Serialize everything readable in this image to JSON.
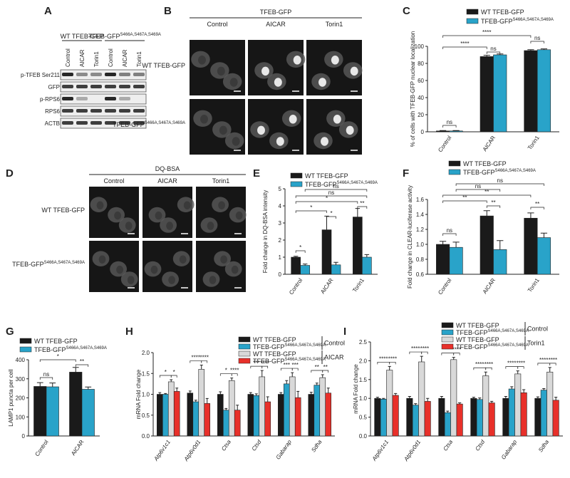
{
  "blot": {
    "panel": "A",
    "groups": [
      {
        "name": "WT TFEB-GFP"
      },
      {
        "name": "TFEB-GFP",
        "name_superscript": "S466A,S467A,S469A"
      }
    ],
    "lanes": [
      "Control",
      "AICAR",
      "Torin1",
      "Control",
      "AICAR",
      "Torin1"
    ],
    "rows": [
      "p-TFEB Ser211",
      "GFP",
      "p-RPS6",
      "RPS6",
      "ACTB"
    ]
  },
  "microscopy": [
    {
      "panel": "B",
      "title": "TFEB-GFP",
      "columns": [
        "Control",
        "AICAR",
        "Torin1"
      ],
      "rows": [
        {
          "name": "WT TFEB-GFP"
        },
        {
          "name": "TFEB-GFP",
          "name_superscript": "S466A,S467A,S469A"
        }
      ]
    },
    {
      "panel": "D",
      "title": "DQ-BSA",
      "columns": [
        "Control",
        "AICAR",
        "Torin1"
      ],
      "rows": [
        {
          "name": "WT TFEB-GFP"
        },
        {
          "name": "TFEB-GFP",
          "name_superscript": "S466A,S467A,S469A"
        }
      ]
    }
  ],
  "chart_data": [
    {
      "panel": "C",
      "type": "bar",
      "y_label": "% of cells with TFEB-GFP nuclear localization",
      "categories": [
        "Control",
        "AICAR",
        "Torin1"
      ],
      "series": [
        {
          "name": "WT TFEB-GFP",
          "color": "#1a1a1a",
          "values": [
            1,
            88,
            95
          ],
          "errors": [
            0.5,
            1.5,
            1
          ]
        },
        {
          "name": "TFEB-GFP",
          "name_superscript": "S466A,S467A,S469A",
          "color": "#29a3c9",
          "values": [
            1,
            90,
            96
          ],
          "errors": [
            0.5,
            1,
            1
          ]
        }
      ],
      "ylim": [
        0,
        100
      ],
      "yticks": [
        0,
        20,
        40,
        60,
        80,
        100
      ],
      "significance": [
        "ns",
        "****",
        "****",
        "ns",
        "ns"
      ]
    },
    {
      "panel": "E",
      "type": "bar",
      "y_label": "Fold change in DQ-BSA intensity",
      "categories": [
        "Control",
        "AICAR",
        "Torin1"
      ],
      "series": [
        {
          "name": "WT TFEB-GFP",
          "color": "#1a1a1a",
          "values": [
            1.0,
            2.6,
            3.35
          ],
          "errors": [
            0.05,
            0.8,
            0.5
          ]
        },
        {
          "name": "TFEB-GFP",
          "name_superscript": "S466A,S467A,S469A",
          "color": "#29a3c9",
          "values": [
            0.52,
            0.55,
            1.0
          ],
          "errors": [
            0.08,
            0.15,
            0.15
          ]
        }
      ],
      "ylim": [
        0,
        5
      ],
      "yticks": [
        0,
        1,
        2,
        3,
        4,
        5
      ],
      "significance": [
        "*",
        "*",
        "*",
        "*",
        "ns",
        "ns",
        "**"
      ]
    },
    {
      "panel": "F",
      "type": "bar",
      "y_label": "Fold change in CLEAR-luciferase activity",
      "categories": [
        "Control",
        "AICAR",
        "Torin1"
      ],
      "series": [
        {
          "name": "WT TFEB-GFP",
          "color": "#1a1a1a",
          "values": [
            1.0,
            1.38,
            1.35
          ],
          "errors": [
            0.04,
            0.07,
            0.07
          ]
        },
        {
          "name": "TFEB-GFP",
          "name_superscript": "S466A,S467A,S469A",
          "color": "#29a3c9",
          "values": [
            0.96,
            0.93,
            1.09
          ],
          "errors": [
            0.07,
            0.12,
            0.06
          ]
        }
      ],
      "ylim": [
        0.6,
        1.6
      ],
      "yticks": [
        0.6,
        0.8,
        {
          "value": 1,
          "label": "1.0"
        },
        1.2,
        1.4,
        1.6
      ],
      "significance": [
        "ns",
        "**",
        "**",
        "**",
        "**",
        "ns",
        "ns"
      ]
    },
    {
      "panel": "G",
      "type": "bar",
      "y_label": "LAMP1 puncta per cell",
      "categories": [
        "Control",
        "AICAR"
      ],
      "series": [
        {
          "name": "WT TFEB-GFP",
          "color": "#1a1a1a",
          "values": [
            260,
            335
          ],
          "errors": [
            20,
            25
          ]
        },
        {
          "name": "TFEB-GFP",
          "name_superscript": "S466A,S467A,S469A",
          "color": "#29a3c9",
          "values": [
            258,
            245
          ],
          "errors": [
            20,
            12
          ]
        }
      ],
      "ylim": [
        0,
        400
      ],
      "yticks": [
        0,
        100,
        200,
        300,
        400
      ],
      "significance": [
        "ns",
        "*",
        "**"
      ]
    },
    {
      "panel": "H",
      "type": "bar",
      "y_label": "mRNA Fold change",
      "italic_categories": true,
      "categories": [
        "Atp6v1c1",
        "Atp6v0d1",
        "Ctsa",
        "Ctsd",
        "Gabarap",
        "Sdha"
      ],
      "legend_groups": [
        "Control",
        "AICAR"
      ],
      "series": [
        {
          "name": "WT TFEB-GFP",
          "color": "#1a1a1a",
          "values": [
            1.0,
            1.03,
            1.0,
            1.0,
            1.0,
            1.0
          ],
          "errors": [
            0.04,
            0.05,
            0.06,
            0.04,
            0.04,
            0.05
          ]
        },
        {
          "name": "TFEB-GFP",
          "name_superscript": "S466A,S467A,S469A",
          "color": "#29a3c9",
          "values": [
            1.0,
            0.82,
            0.62,
            0.97,
            1.25,
            1.22
          ],
          "errors": [
            0.02,
            0.04,
            0.04,
            0.04,
            0.08,
            0.05
          ]
        },
        {
          "name": "WT TFEB-GFP",
          "color": "#d9d9d9",
          "values": [
            1.3,
            1.6,
            1.33,
            1.42,
            1.42,
            1.4
          ],
          "errors": [
            0.05,
            0.1,
            0.06,
            0.15,
            0.1,
            0.07
          ]
        },
        {
          "name": "TFEB-GFP",
          "name_superscript": "S466A,S467A,S469A",
          "color": "#e8302a",
          "values": [
            1.07,
            0.78,
            0.62,
            0.82,
            0.92,
            1.03
          ],
          "errors": [
            0.08,
            0.12,
            0.12,
            0.12,
            0.15,
            0.12
          ]
        }
      ],
      "ylim": [
        0,
        2.0
      ],
      "yticks": [
        {
          "value": 0,
          "label": "0.0"
        },
        0.5,
        {
          "value": 1,
          "label": "1.0"
        },
        1.5,
        {
          "value": 2,
          "label": "2.0"
        }
      ],
      "significance": [
        "*",
        "*",
        "****",
        "****",
        "*",
        "****",
        "***",
        "****",
        "***",
        "***",
        "**",
        "**"
      ]
    },
    {
      "panel": "I",
      "type": "bar",
      "y_label": "mRNA Fold change",
      "italic_categories": true,
      "categories": [
        "Atp6v1c1",
        "Atp6v0d1",
        "Ctsa",
        "Ctsd",
        "Gabarap",
        "Sdha"
      ],
      "legend_groups": [
        "Control",
        "Torin1"
      ],
      "series": [
        {
          "name": "WT TFEB-GFP",
          "color": "#1a1a1a",
          "values": [
            1.0,
            1.0,
            1.0,
            1.0,
            1.0,
            1.0
          ],
          "errors": [
            0.03,
            0.05,
            0.05,
            0.03,
            0.05,
            0.04
          ]
        },
        {
          "name": "TFEB-GFP",
          "name_superscript": "S466A,S467A,S469A",
          "color": "#29a3c9",
          "values": [
            0.98,
            0.82,
            0.62,
            0.97,
            1.25,
            1.22
          ],
          "errors": [
            0.02,
            0.04,
            0.04,
            0.04,
            0.06,
            0.04
          ]
        },
        {
          "name": "WT TFEB-GFP",
          "color": "#d9d9d9",
          "values": [
            1.75,
            1.97,
            2.03,
            1.6,
            1.65,
            1.7
          ],
          "errors": [
            0.1,
            0.15,
            0.06,
            0.1,
            0.08,
            0.12
          ]
        },
        {
          "name": "TFEB-GFP",
          "name_superscript": "S466A,S467A,S469A",
          "color": "#e8302a",
          "values": [
            1.08,
            0.92,
            0.85,
            0.88,
            1.15,
            0.95
          ],
          "errors": [
            0.05,
            0.08,
            0.03,
            0.04,
            0.08,
            0.08
          ]
        }
      ],
      "ylim": [
        0,
        2.5
      ],
      "yticks": [
        {
          "value": 0,
          "label": "0.0"
        },
        0.5,
        {
          "value": 1,
          "label": "1.0"
        },
        1.5,
        {
          "value": 2,
          "label": "2.0"
        },
        2.5
      ],
      "significance": [
        "****",
        "****",
        "****",
        "****",
        "****",
        "****",
        "****",
        "****",
        "****",
        "****",
        "****",
        "****"
      ]
    }
  ]
}
